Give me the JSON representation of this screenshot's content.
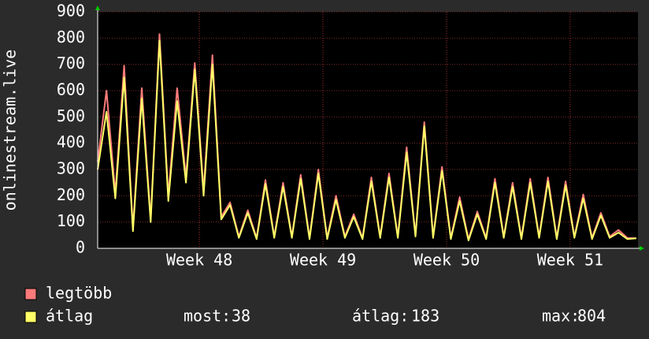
{
  "chart_data": {
    "type": "line",
    "y_label": "onlinestream.live",
    "x": [
      0,
      0.5,
      1,
      1.5,
      2,
      2.5,
      3,
      3.5,
      4,
      4.5,
      5,
      5.5,
      6,
      6.5,
      7,
      7.5,
      8,
      8.5,
      9,
      9.5,
      10,
      10.5,
      11,
      11.5,
      12,
      12.5,
      13,
      13.5,
      14,
      14.5,
      15,
      15.5,
      16,
      16.5,
      17,
      17.5,
      18,
      18.5,
      19,
      19.5,
      20,
      20.5,
      21,
      21.5,
      22,
      22.5,
      23,
      23.5,
      24,
      24.5,
      25,
      25.5,
      26,
      26.5,
      27,
      27.5,
      28,
      28.5,
      29,
      29.5,
      30,
      30.5
    ],
    "xlim": [
      0,
      30.6
    ],
    "xticks": [
      {
        "value": 5.76,
        "label": "Week 48"
      },
      {
        "value": 12.76,
        "label": "Week 49"
      },
      {
        "value": 19.76,
        "label": "Week 50"
      },
      {
        "value": 26.76,
        "label": "Week 51"
      }
    ],
    "ylim": [
      0,
      900
    ],
    "yticks": [
      0,
      100,
      200,
      300,
      400,
      500,
      600,
      700,
      800,
      900
    ],
    "grid": true,
    "series": [
      {
        "name": "legtöbb",
        "color": "#ff7b7b",
        "values": [
          330,
          600,
          210,
          695,
          75,
          610,
          110,
          815,
          200,
          610,
          270,
          705,
          220,
          735,
          120,
          175,
          45,
          145,
          40,
          260,
          45,
          250,
          45,
          280,
          40,
          300,
          40,
          200,
          45,
          130,
          40,
          270,
          45,
          285,
          45,
          385,
          50,
          480,
          45,
          310,
          40,
          195,
          35,
          140,
          40,
          265,
          45,
          250,
          40,
          265,
          45,
          270,
          40,
          255,
          45,
          205,
          40,
          135,
          45,
          70,
          40,
          38
        ]
      },
      {
        "name": "átlag",
        "color": "#ffff66",
        "values": [
          300,
          520,
          190,
          650,
          65,
          570,
          100,
          790,
          180,
          560,
          250,
          680,
          200,
          700,
          110,
          165,
          40,
          135,
          35,
          245,
          40,
          235,
          40,
          265,
          35,
          285,
          35,
          185,
          40,
          120,
          35,
          255,
          40,
          270,
          40,
          365,
          45,
          465,
          40,
          295,
          35,
          180,
          30,
          130,
          35,
          250,
          40,
          235,
          35,
          250,
          40,
          255,
          35,
          240,
          40,
          190,
          35,
          125,
          40,
          60,
          35,
          38
        ]
      }
    ],
    "stats": [
      {
        "label": "most:",
        "value": 38
      },
      {
        "label": "átlag:",
        "value": 183
      },
      {
        "label": "max:",
        "value": 804
      }
    ]
  }
}
